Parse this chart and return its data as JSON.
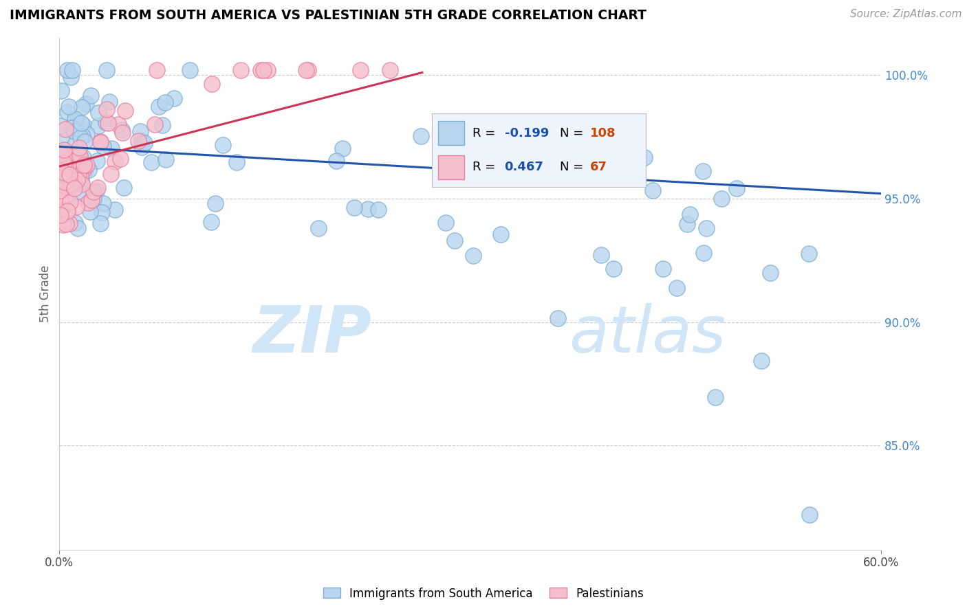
{
  "title": "IMMIGRANTS FROM SOUTH AMERICA VS PALESTINIAN 5TH GRADE CORRELATION CHART",
  "source": "Source: ZipAtlas.com",
  "ylabel": "5th Grade",
  "ytick_labels": [
    "100.0%",
    "95.0%",
    "90.0%",
    "85.0%"
  ],
  "ytick_values": [
    1.0,
    0.95,
    0.9,
    0.85
  ],
  "xmin": 0.0,
  "xmax": 0.6,
  "ymin": 0.808,
  "ymax": 1.015,
  "legend_blue_label": "Immigrants from South America",
  "legend_pink_label": "Palestinians",
  "blue_R": -0.199,
  "blue_N": 108,
  "pink_R": 0.467,
  "pink_N": 67,
  "blue_color": "#b8d4ee",
  "blue_edge": "#7aafd4",
  "pink_color": "#f5bfcc",
  "pink_edge": "#e87fa0",
  "blue_line_color": "#2255aa",
  "pink_line_color": "#cc3355",
  "legend_R_color": "#1a4faa",
  "legend_N_color": "#cc4400",
  "watermark_color": "#d0e5f5",
  "blue_trend_x": [
    0.0,
    0.6
  ],
  "blue_trend_y": [
    0.971,
    0.952
  ],
  "pink_trend_x": [
    0.0,
    0.265
  ],
  "pink_trend_y": [
    0.963,
    1.001
  ]
}
